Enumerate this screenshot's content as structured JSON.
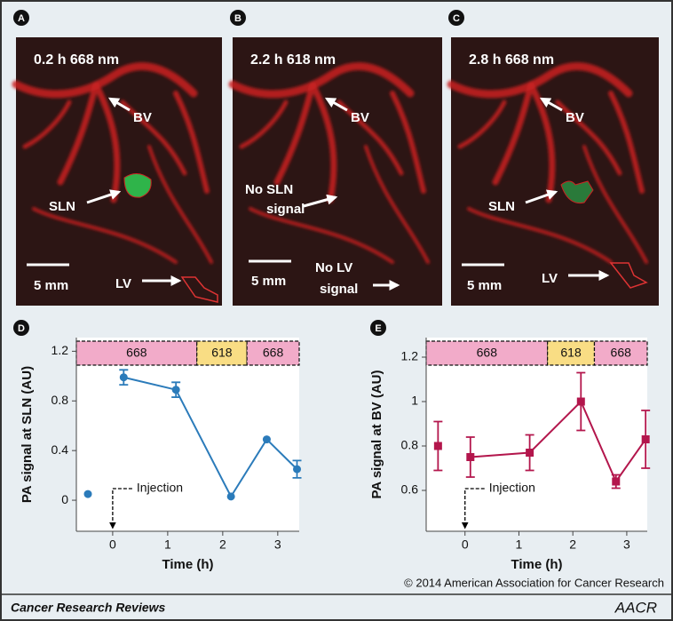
{
  "panels": [
    {
      "letter": "A",
      "caption": "0.2 h 668 nm",
      "labels": {
        "bv": "BV",
        "sln": "SLN",
        "scale": "5 mm",
        "lv": "LV"
      }
    },
    {
      "letter": "B",
      "caption": "2.2 h 618 nm",
      "labels": {
        "bv": "BV",
        "sln": [
          "No SLN",
          "signal"
        ],
        "scale": "5 mm",
        "lv": [
          "No LV",
          "signal"
        ]
      }
    },
    {
      "letter": "C",
      "caption": "2.8 h 668 nm",
      "labels": {
        "bv": "BV",
        "sln": "SLN",
        "scale": "5 mm",
        "lv": "LV"
      }
    }
  ],
  "chart_data": [
    {
      "type": "line",
      "letter": "D",
      "ylabel": "PA signal at SLN (AU)",
      "xlabel": "Time (h)",
      "xlim": [
        -0.66,
        3.39
      ],
      "xticks": [
        0,
        1,
        2,
        3
      ],
      "ylim": [
        -0.25,
        1.31
      ],
      "yticks": [
        0,
        0.4,
        0.8,
        1.2
      ],
      "bands": [
        {
          "label": "668",
          "start": -0.66,
          "end": 1.53,
          "color": "#f2abc9"
        },
        {
          "label": "618",
          "start": 1.53,
          "end": 2.44,
          "color": "#f9dd84"
        },
        {
          "label": "668",
          "start": 2.44,
          "end": 3.39,
          "color": "#f2abc9"
        }
      ],
      "annotation": {
        "text": "Injection",
        "x": 0
      },
      "series": [
        {
          "color": "#2b7bba",
          "marker": "circle",
          "line": false,
          "x": [
            -0.45
          ],
          "values": [
            0.05
          ]
        },
        {
          "color": "#2b7bba",
          "marker": "circle",
          "line": true,
          "x": [
            0.2,
            1.15,
            2.15,
            2.8,
            3.35
          ],
          "values": [
            0.99,
            0.89,
            0.03,
            0.49,
            0.25
          ],
          "errors": [
            0.06,
            0.06,
            null,
            null,
            0.07
          ]
        }
      ]
    },
    {
      "type": "line",
      "letter": "E",
      "ylabel": "PA signal at BV (AU)",
      "xlabel": "Time (h)",
      "xlim": [
        -0.72,
        3.38
      ],
      "xticks": [
        0,
        1,
        2,
        3
      ],
      "ylim": [
        0.416,
        1.288
      ],
      "yticks": [
        0.6,
        0.8,
        1,
        1.2
      ],
      "bands": [
        {
          "label": "668",
          "start": -0.72,
          "end": 1.53,
          "color": "#f2abc9"
        },
        {
          "label": "618",
          "start": 1.53,
          "end": 2.4,
          "color": "#f9dd84"
        },
        {
          "label": "668",
          "start": 2.4,
          "end": 3.38,
          "color": "#f2abc9"
        }
      ],
      "annotation": {
        "text": "Injection",
        "x": 0
      },
      "series": [
        {
          "color": "#b3164c",
          "marker": "square",
          "line": false,
          "x": [
            -0.5
          ],
          "values": [
            0.8
          ],
          "errors": [
            0.11
          ]
        },
        {
          "color": "#b3164c",
          "marker": "square",
          "line": true,
          "x": [
            0.1,
            1.2,
            2.15,
            2.8,
            3.35
          ],
          "values": [
            0.75,
            0.77,
            1.0,
            0.64,
            0.83
          ],
          "errors": [
            0.09,
            0.08,
            0.13,
            0.03,
            0.13
          ]
        }
      ]
    }
  ],
  "footer": {
    "copyright": "© 2014 American Association for Cancer Research",
    "journal": "Cancer Research Reviews",
    "logo": "AACR"
  }
}
